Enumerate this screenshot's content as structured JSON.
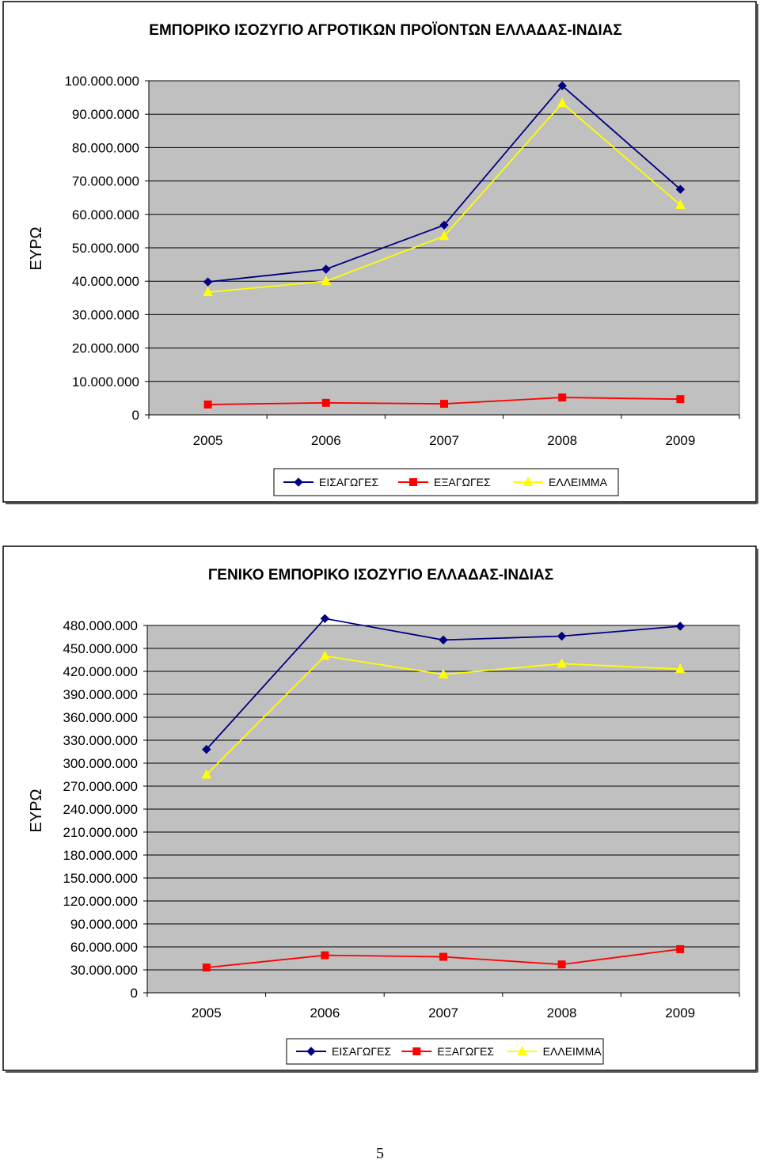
{
  "page_number": "5",
  "colors": {
    "imports": "#000080",
    "exports": "#FF0000",
    "deficit": "#FFFF00",
    "plot_bg": "#C0C0C0"
  },
  "chart_data": [
    {
      "type": "line",
      "title": "ΕΜΠΟΡΙΚΟ ΙΣΟΖΥΓΙΟ ΑΓΡΟΤΙΚΩΝ ΠΡΟΪΟΝΤΩΝ ΕΛΛΑΔΑΣ-ΙΝΔΙΑΣ",
      "xlabel": "",
      "ylabel": "ΕΥΡΩ",
      "categories": [
        "2005",
        "2006",
        "2007",
        "2008",
        "2009"
      ],
      "ylim": [
        0,
        100000000
      ],
      "yticks": [
        0,
        10000000,
        20000000,
        30000000,
        40000000,
        50000000,
        60000000,
        70000000,
        80000000,
        90000000,
        100000000
      ],
      "ytick_labels": [
        "0",
        "10.000.000",
        "20.000.000",
        "30.000.000",
        "40.000.000",
        "50.000.000",
        "60.000.000",
        "70.000.000",
        "80.000.000",
        "90.000.000",
        "100.000.000"
      ],
      "grid": true,
      "legend": "bottom",
      "series": [
        {
          "name": "ΕΙΣΑΓΩΓΕΣ",
          "color": "#000080",
          "marker": "diamond",
          "values": [
            39800000,
            43600000,
            56800000,
            98500000,
            67500000
          ]
        },
        {
          "name": "ΕΞΑΓΩΓΕΣ",
          "color": "#FF0000",
          "marker": "square",
          "values": [
            3100000,
            3600000,
            3300000,
            5200000,
            4700000
          ]
        },
        {
          "name": "ΕΛΛΕΙΜΜΑ",
          "color": "#FFFF00",
          "marker": "triangle",
          "values": [
            36700000,
            40000000,
            53500000,
            93300000,
            62800000
          ]
        }
      ]
    },
    {
      "type": "line",
      "title": "ΓΕΝΙΚΟ ΕΜΠΟΡΙΚΟ ΙΣΟΖΥΓΙΟ ΕΛΛΑΔΑΣ-ΙΝΔΙΑΣ",
      "xlabel": "",
      "ylabel": "ΕΥΡΩ",
      "categories": [
        "2005",
        "2006",
        "2007",
        "2008",
        "2009"
      ],
      "ylim": [
        0,
        480000000
      ],
      "yticks": [
        0,
        30000000,
        60000000,
        90000000,
        120000000,
        150000000,
        180000000,
        210000000,
        240000000,
        270000000,
        300000000,
        330000000,
        360000000,
        390000000,
        420000000,
        450000000,
        480000000
      ],
      "ytick_labels": [
        "0",
        "30.000.000",
        "60.000.000",
        "90.000.000",
        "120.000.000",
        "150.000.000",
        "180.000.000",
        "210.000.000",
        "240.000.000",
        "270.000.000",
        "300.000.000",
        "330.000.000",
        "360.000.000",
        "390.000.000",
        "420.000.000",
        "450.000.000",
        "480.000.000"
      ],
      "grid": true,
      "legend": "bottom",
      "series": [
        {
          "name": "ΕΙΣΑΓΩΓΕΣ",
          "color": "#000080",
          "marker": "diamond",
          "values": [
            318000000,
            489000000,
            461000000,
            466000000,
            479000000
          ]
        },
        {
          "name": "ΕΞΑΓΩΓΕΣ",
          "color": "#FF0000",
          "marker": "square",
          "values": [
            33000000,
            49000000,
            47000000,
            37000000,
            57000000
          ]
        },
        {
          "name": "ΕΛΛΕΙΜΜΑ",
          "color": "#FFFF00",
          "marker": "triangle",
          "values": [
            285000000,
            440000000,
            416000000,
            430000000,
            423000000
          ]
        }
      ]
    }
  ]
}
